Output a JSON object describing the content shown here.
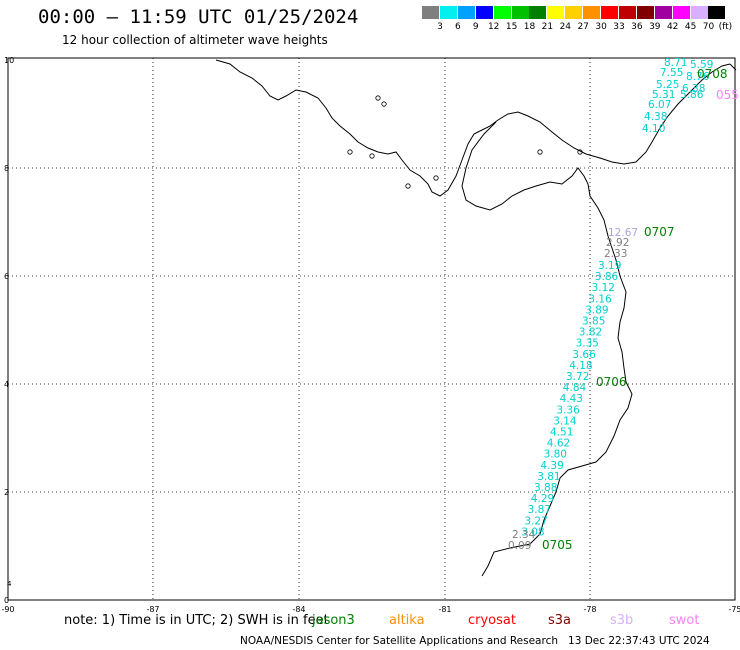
{
  "header": {
    "title": "00:00 – 11:59 UTC 01/25/2024",
    "subtitle": "12 hour collection of altimeter wave heights"
  },
  "colorbar": {
    "unit": "(ft)",
    "swatches": [
      {
        "color": "#7f7f7f",
        "label": "3"
      },
      {
        "color": "#00f0f0",
        "label": "6"
      },
      {
        "color": "#00a0ff",
        "label": "9"
      },
      {
        "color": "#0000ff",
        "label": "12"
      },
      {
        "color": "#00ff00",
        "label": "15"
      },
      {
        "color": "#00c000",
        "label": "18"
      },
      {
        "color": "#008000",
        "label": "21"
      },
      {
        "color": "#ffff00",
        "label": "24"
      },
      {
        "color": "#ffd000",
        "label": "27"
      },
      {
        "color": "#ff9000",
        "label": "30"
      },
      {
        "color": "#ff0000",
        "label": "33"
      },
      {
        "color": "#c00000",
        "label": "36"
      },
      {
        "color": "#800000",
        "label": "39"
      },
      {
        "color": "#a000a0",
        "label": "42"
      },
      {
        "color": "#ff00ff",
        "label": "45"
      },
      {
        "color": "#d8b0ff",
        "label": "70"
      },
      {
        "color": "#000000",
        "label": ""
      }
    ]
  },
  "map": {
    "lon_ticks": [
      "-90",
      "-87",
      "-84",
      "-81",
      "-78",
      "-75"
    ],
    "lat_ticks": [
      "10",
      "8",
      "6",
      "4",
      "2",
      "0"
    ],
    "lat_minor": "4",
    "pass_ids": [
      {
        "id": "0708",
        "color": "#008000"
      },
      {
        "id": "055",
        "color": "#ff80ff"
      },
      {
        "id": "0707",
        "color": "#008000"
      },
      {
        "id": "0706",
        "color": "#008000"
      },
      {
        "id": "0705",
        "color": "#008000"
      }
    ],
    "track_north": [
      "8.71",
      "5.59",
      "7.55",
      "8.76",
      "5.25",
      "6.38",
      "5.31",
      "5.86",
      "6.07",
      "4.38",
      "4.10"
    ],
    "track_main_grey": [
      "12.67",
      "2.92",
      "2.33"
    ],
    "track_main": [
      "3.19",
      "3.86",
      "3.12",
      "3.16",
      "3.89",
      "3.85",
      "3.82",
      "3.35",
      "3.66",
      "4.18",
      "3.72",
      "4.84",
      "4.43",
      "3.36",
      "3.14",
      "4.51",
      "4.62",
      "3.80",
      "4.39",
      "3.81",
      "3.88",
      "4.29",
      "3.87",
      "3.27",
      "3.08"
    ],
    "track_south_grey": [
      "2.34",
      "0.09"
    ]
  },
  "footer": {
    "note": "note: 1) Time is in UTC; 2) SWH is in feet",
    "satellites": [
      {
        "name": "jason3",
        "color": "#008000"
      },
      {
        "name": "altika",
        "color": "#ff9000"
      },
      {
        "name": "cryosat",
        "color": "#ff0000"
      },
      {
        "name": "s3a",
        "color": "#800000"
      },
      {
        "name": "s3b",
        "color": "#d8b0ff"
      },
      {
        "name": "swot",
        "color": "#ff80ff"
      }
    ],
    "credit": "NOAA/NESDIS Center for Satellite Applications and Research",
    "timestamp": "13 Dec 22:37:43 UTC 2024"
  }
}
